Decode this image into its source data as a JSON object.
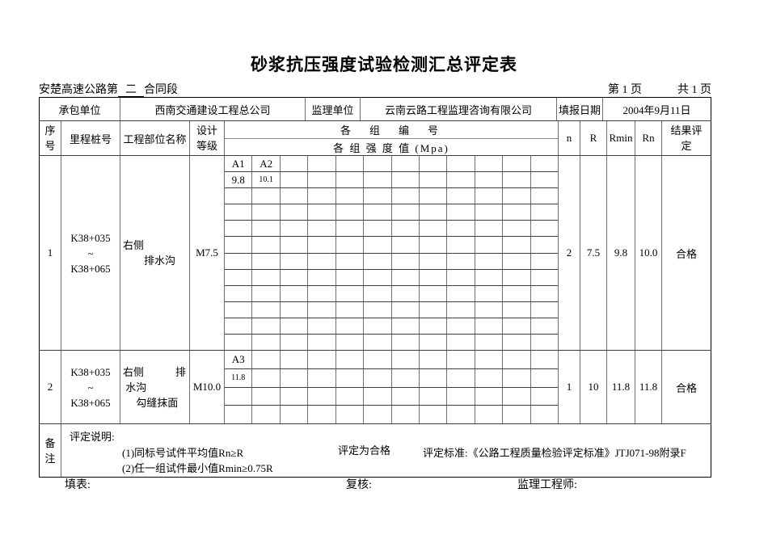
{
  "page": {
    "title": "砂浆抗压强度试验检测汇总评定表",
    "contract_prefix": "安楚高速公路第",
    "contract_no": "二",
    "contract_suffix": "合同段",
    "page_current": "第 1 页",
    "page_total": "共 1 页"
  },
  "info": {
    "contractor_label": "承包单位",
    "contractor_value": "西南交通建设工程总公司",
    "supervisor_label": "监理单位",
    "supervisor_value": "云南云路工程监理咨询有限公司",
    "date_label": "填报日期",
    "date_value": "2004年9月11日"
  },
  "table": {
    "headers": {
      "seq": "序\n号",
      "station": "里程桩号",
      "part": "工程部位名称",
      "grade": "设计\n等级",
      "group_no": "各　组　编　号",
      "group_strength": "各 组 强 度 值 (Mpa)",
      "n": "n",
      "r": "R",
      "rmin": "Rmin",
      "rn": "Rn",
      "result": "结果评\n定"
    },
    "rows": [
      {
        "seq": "1",
        "station": "K38+035\n~\nK38+065",
        "part": "右侧\n　　排水沟",
        "grade": "M7.5",
        "group": {
          "cols": 12,
          "rows": 12,
          "cells": [
            [
              "A1",
              "A2"
            ],
            [
              "9.8",
              "10.1"
            ]
          ]
        },
        "n": "2",
        "r": "7.5",
        "rmin": "9.8",
        "rn": "10.0",
        "result": "合格"
      },
      {
        "seq": "2",
        "station": "K38+035\n~\nK38+065",
        "part": "右侧　　　排\n 水沟\n　 勾缝抹面",
        "grade": "M10.0",
        "group": {
          "cols": 12,
          "rows": 4,
          "cells": [
            [
              "A3"
            ],
            [
              "11.8"
            ]
          ]
        },
        "n": "1",
        "r": "10",
        "rmin": "11.8",
        "rn": "11.8",
        "result": "合格"
      }
    ]
  },
  "remark": {
    "label": "备\n注",
    "heading": "评定说明:",
    "item1": "(1)同标号试件平均值Rn≥R",
    "item2": "(2)任一组试件最小值Rmin≥0.75R",
    "conclusion": "评定为合格",
    "standard": "评定标准:《公路工程质量检验评定标准》JTJ071-98附录F"
  },
  "footer": {
    "fill_label": "填表:",
    "review_label": "复核:",
    "supervisor_label": "监理工程师:"
  }
}
